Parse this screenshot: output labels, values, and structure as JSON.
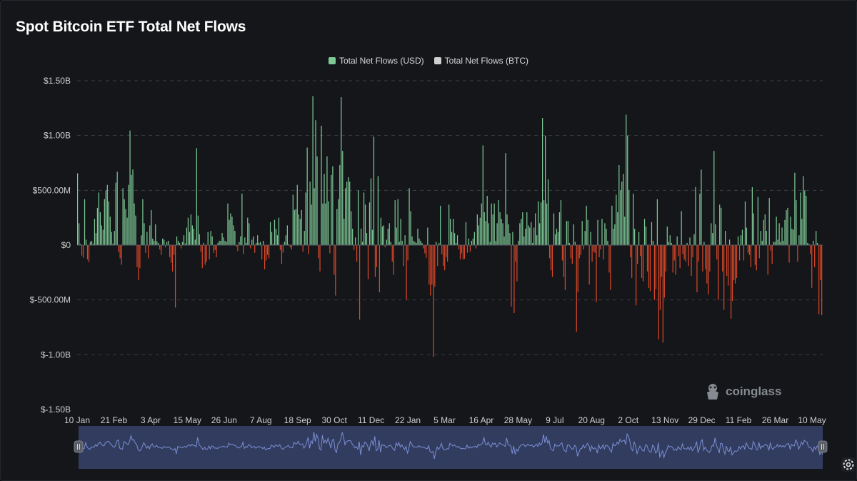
{
  "title": "Spot Bitcoin ETF Total Net Flows",
  "legend": [
    {
      "label": "Total Net Flows (USD)",
      "color": "#7ec996"
    },
    {
      "label": "Total Net Flows (BTC)",
      "color": "#d0d0d0"
    }
  ],
  "watermark": "coinglass",
  "colors": {
    "positive": "#7ec996",
    "negative": "#d9482a",
    "grid": "#3a3d44",
    "navigator_line": "#7b8fd6",
    "navigator_fill": "#3c4a77"
  },
  "chart_data": {
    "type": "bar",
    "title": "Spot Bitcoin ETF Total Net Flows",
    "ylabel": "Total Net Flows (USD)",
    "ylim": [
      -1500000000,
      1500000000
    ],
    "y_ticks": [
      {
        "value": 1500000000,
        "label": "$1.50B"
      },
      {
        "value": 1000000000,
        "label": "$1.00B"
      },
      {
        "value": 500000000,
        "label": "$500.00M"
      },
      {
        "value": 0,
        "label": "$0"
      },
      {
        "value": -500000000,
        "label": "$-500.00M"
      },
      {
        "value": -1000000000,
        "label": "$-1.00B"
      },
      {
        "value": -1500000000,
        "label": "$-1.50B"
      }
    ],
    "x_ticks": [
      "10 Jan",
      "21 Feb",
      "3 Apr",
      "15 May",
      "26 Jun",
      "7 Aug",
      "18 Sep",
      "30 Oct",
      "11 Dec",
      "22 Jan",
      "5 Mar",
      "16 Apr",
      "28 May",
      "9 Jul",
      "20 Aug",
      "2 Oct",
      "13 Nov",
      "29 Dec",
      "11 Feb",
      "26 Mar",
      "10 May"
    ],
    "grid": true,
    "legend_position": "top-center",
    "series": [
      {
        "name": "Total Net Flows (USD)",
        "unit": "USD millions",
        "values": [
          655,
          200,
          10,
          -95,
          -115,
          420,
          50,
          -130,
          -155,
          30,
          40,
          15,
          240,
          110,
          340,
          480,
          300,
          180,
          140,
          420,
          500,
          550,
          400,
          260,
          120,
          15,
          130,
          570,
          670,
          -65,
          -120,
          -180,
          520,
          420,
          330,
          250,
          550,
          1045,
          640,
          690,
          380,
          270,
          -200,
          -320,
          -210,
          90,
          420,
          200,
          -70,
          120,
          -120,
          180,
          320,
          60,
          40,
          190,
          35,
          20,
          -40,
          -90,
          60,
          50,
          -20,
          30,
          40,
          -110,
          -160,
          -240,
          -90,
          -570,
          80,
          40,
          20,
          -30,
          30,
          90,
          15,
          160,
          250,
          120,
          280,
          180,
          150,
          50,
          885,
          270,
          100,
          -60,
          -210,
          20,
          -180,
          -150,
          120,
          -130,
          130,
          80,
          -70,
          -45,
          -110,
          20,
          40,
          40,
          110,
          70,
          40,
          30,
          380,
          230,
          290,
          260,
          180,
          130,
          -15,
          -55,
          30,
          80,
          470,
          -80,
          70,
          20,
          250,
          200,
          -30,
          50,
          80,
          -70,
          20,
          90,
          20,
          30,
          -130,
          40,
          -220,
          -140,
          -90,
          -120,
          210,
          120,
          10,
          230,
          150,
          90,
          250,
          -45,
          -170,
          -70,
          30,
          90,
          180,
          10,
          -20,
          -40,
          460,
          320,
          330,
          550,
          280,
          240,
          320,
          -60,
          130,
          480,
          890,
          -80,
          580,
          370,
          1360,
          520,
          1140,
          810,
          -120,
          -240,
          1090,
          380,
          650,
          380,
          810,
          400,
          -75,
          640,
          720,
          -270,
          -460,
          330,
          420,
          730,
          1350,
          860,
          240,
          520,
          580,
          620,
          580,
          310,
          150,
          -45,
          70,
          -150,
          500,
          -680,
          150,
          30,
          480,
          370,
          110,
          -310,
          390,
          610,
          140,
          990,
          -290,
          -200,
          630,
          -430,
          250,
          170,
          180,
          -20,
          50,
          150,
          200,
          30,
          -150,
          -270,
          410,
          160,
          420,
          30,
          240,
          40,
          -190,
          90,
          -500,
          -140,
          520,
          310,
          80,
          40,
          30,
          20,
          150,
          60,
          40,
          20,
          -30,
          -75,
          -115,
          160,
          -360,
          -460,
          -360,
          -1020,
          -380,
          30,
          -190,
          20,
          360,
          -85,
          -190,
          -230,
          -110,
          -150,
          370,
          240,
          120,
          240,
          110,
          20,
          90,
          -40,
          -130,
          -75,
          -130,
          -125,
          210,
          -70,
          60,
          -60,
          40,
          60,
          120,
          -30,
          280,
          180,
          250,
          380,
          910,
          300,
          220,
          450,
          200,
          30,
          380,
          280,
          380,
          40,
          200,
          410,
          300,
          240,
          200,
          80,
          840,
          280,
          190,
          110,
          -560,
          120,
          -620,
          -150,
          -330,
          40,
          200,
          240,
          300,
          80,
          150,
          300,
          180,
          160,
          210,
          20,
          160,
          290,
          90,
          400,
          200,
          390,
          1160,
          410,
          1000,
          380,
          600,
          -120,
          -230,
          -290,
          290,
          100,
          150,
          120,
          300,
          410,
          -140,
          -290,
          -410,
          220,
          220,
          20,
          -120,
          -170,
          190,
          30,
          -790,
          -430,
          -120,
          -90,
          220,
          -40,
          130,
          360,
          230,
          -360,
          120,
          -150,
          -60,
          -70,
          -520,
          230,
          -110,
          -40,
          240,
          -130,
          200,
          150,
          40,
          -250,
          -410,
          360,
          150,
          190,
          460,
          300,
          730,
          500,
          580,
          650,
          260,
          1190,
          1000,
          500,
          -110,
          -300,
          470,
          150,
          -550,
          -170,
          120,
          -100,
          -300,
          -330,
          240,
          170,
          -240,
          -390,
          -420,
          210,
          40,
          -500,
          -400,
          420,
          -860,
          -590,
          -290,
          -890,
          -480,
          -240,
          170,
          30,
          90,
          20,
          -250,
          -140,
          -270,
          80,
          -100,
          -210,
          310,
          -80,
          -130,
          -150,
          20,
          -190,
          70,
          -280,
          -110,
          100,
          530,
          -430,
          -150,
          470,
          690,
          -240,
          30,
          -220,
          -350,
          -450,
          -240,
          200,
          110,
          860,
          190,
          -130,
          -500,
          370,
          340,
          -240,
          -590,
          130,
          -280,
          -370,
          50,
          -670,
          -510,
          -320,
          -350,
          -300,
          80,
          -140,
          90,
          140,
          -140,
          400,
          160,
          -70,
          -90,
          -200,
          530,
          290,
          -180,
          -230,
          440,
          -120,
          130,
          40,
          230,
          280,
          130,
          -270,
          430,
          -50,
          -170,
          30,
          30,
          260,
          50,
          200,
          30,
          160,
          40,
          230,
          320,
          340,
          -160,
          260,
          150,
          140,
          660,
          410,
          -150,
          90,
          480,
          240,
          630,
          500,
          450,
          20,
          10,
          -80,
          -390,
          40,
          -200,
          130,
          20,
          -630,
          -320,
          -640
        ]
      }
    ]
  }
}
